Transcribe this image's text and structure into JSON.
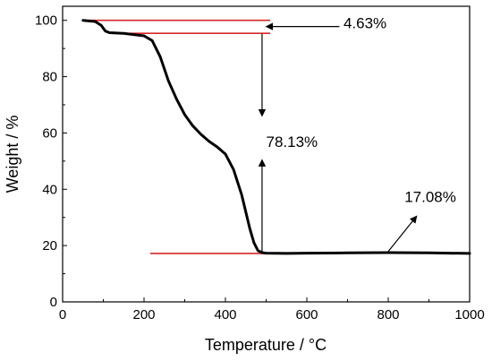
{
  "chart_data": {
    "type": "line",
    "xlabel": "Temperature / °C",
    "ylabel": "Weight / %",
    "xlim": [
      0,
      1000
    ],
    "ylim": [
      0,
      105
    ],
    "xticks": [
      0,
      200,
      400,
      600,
      800,
      1000
    ],
    "yticks": [
      0,
      20,
      40,
      60,
      80,
      100
    ],
    "grid": false,
    "series": [
      {
        "color": "#000000",
        "x": [
          50,
          80,
          95,
          105,
          115,
          150,
          200,
          220,
          240,
          260,
          280,
          300,
          320,
          340,
          360,
          380,
          400,
          420,
          440,
          460,
          470,
          480,
          490,
          500,
          550,
          600,
          700,
          800,
          900,
          1000
        ],
        "y": [
          100,
          99.6,
          98.2,
          96.2,
          95.6,
          95.4,
          94.5,
          92.8,
          87,
          78.5,
          72,
          66.5,
          62.5,
          59.5,
          57,
          55,
          52.5,
          47,
          38,
          26,
          21,
          18.2,
          17.5,
          17.3,
          17.2,
          17.3,
          17.4,
          17.5,
          17.4,
          17.2
        ]
      }
    ],
    "reference_lines": [
      {
        "color": "#d62728",
        "x": [
          60,
          510
        ],
        "y": 100
      },
      {
        "color": "#d62728",
        "x": [
          165,
          510
        ],
        "y": 95.4
      },
      {
        "color": "#d62728",
        "x": [
          215,
          560
        ],
        "y": 17.2
      }
    ],
    "annotations": [
      {
        "text": "4.63%",
        "x": 690,
        "y": 97.2,
        "arrow_from": [
          680,
          97.8
        ],
        "arrow_to": [
          500,
          97.8
        ]
      },
      {
        "text": "78.13%",
        "x": 500,
        "y": 55,
        "arrows": [
          {
            "from": [
              490,
              95.2
            ],
            "to": [
              490,
              66
            ]
          },
          {
            "from": [
              490,
              17.6
            ],
            "to": [
              490,
              50.5
            ]
          }
        ]
      },
      {
        "text": "17.08%",
        "x": 840,
        "y": 35.5,
        "arrow_from": [
          800,
          17.9
        ],
        "arrow_to": [
          870,
          30.5
        ]
      }
    ]
  }
}
